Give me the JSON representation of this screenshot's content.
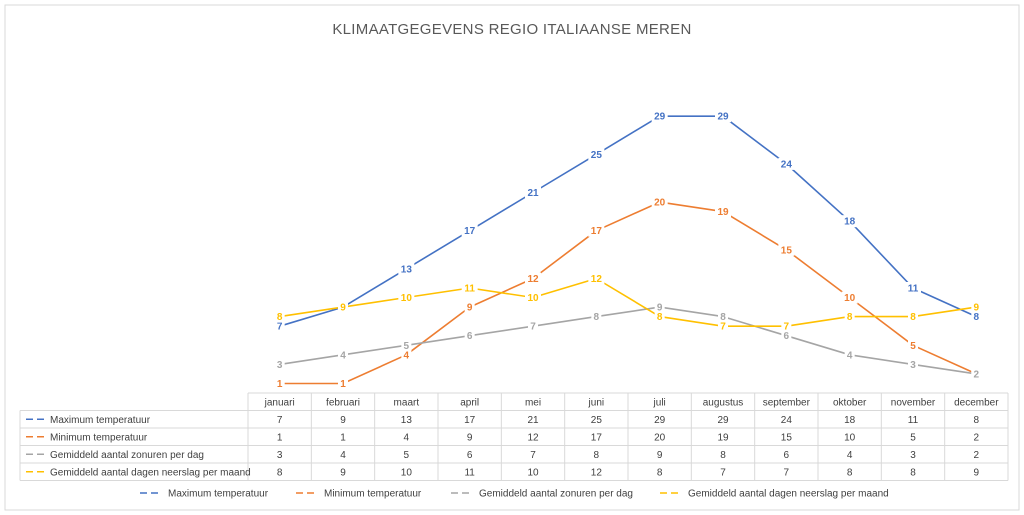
{
  "chart_data": {
    "type": "line",
    "title": "KLIMAATGEGEVENS REGIO ITALIAANSE MEREN",
    "categories": [
      "januari",
      "februari",
      "maart",
      "april",
      "mei",
      "juni",
      "juli",
      "augustus",
      "september",
      "oktober",
      "november",
      "december"
    ],
    "series": [
      {
        "name": "Maximum temperatuur",
        "color": "#4472C4",
        "values": [
          7,
          9,
          13,
          17,
          21,
          25,
          29,
          29,
          24,
          18,
          11,
          8
        ]
      },
      {
        "name": "Minimum temperatuur",
        "color": "#ED7D31",
        "values": [
          1,
          1,
          4,
          9,
          12,
          17,
          20,
          19,
          15,
          10,
          5,
          2
        ]
      },
      {
        "name": "Gemiddeld aantal zonuren per dag",
        "color": "#A5A5A5",
        "values": [
          3,
          4,
          5,
          6,
          7,
          8,
          9,
          8,
          6,
          4,
          3,
          2
        ]
      },
      {
        "name": "Gemiddeld aantal dagen neerslag per maand",
        "color": "#FFC000",
        "values": [
          8,
          9,
          10,
          11,
          10,
          12,
          8,
          7,
          7,
          8,
          8,
          9
        ]
      }
    ],
    "ylim": [
      0,
      33
    ],
    "data_labels": true,
    "data_table": true,
    "legend": "bottom",
    "grid": false
  }
}
